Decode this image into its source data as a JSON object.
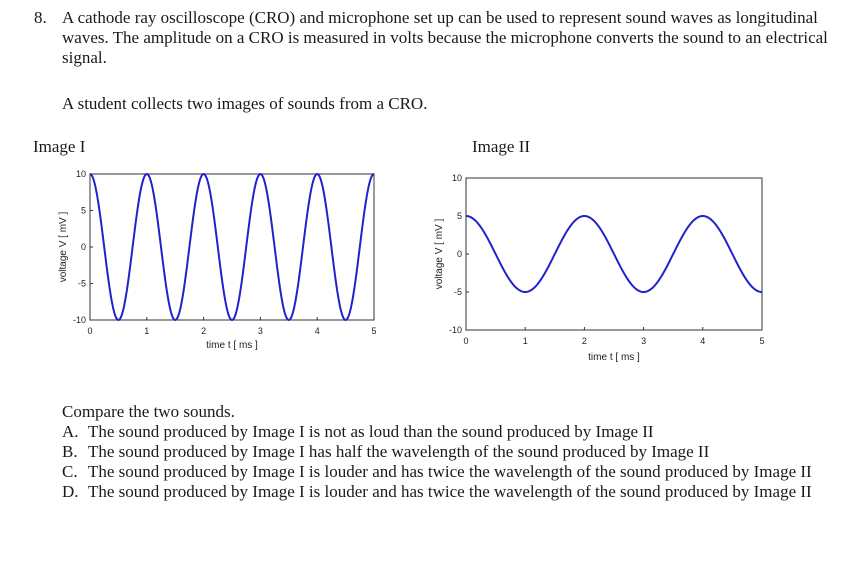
{
  "question": {
    "number": "8.",
    "text": "A cathode ray oscilloscope (CRO) and microphone set up can be used to represent sound waves as longitudinal waves. The amplitude on a CRO is measured in volts because the microphone converts the sound to an electrical signal.",
    "intro": "A student collects two images of sounds from a CRO."
  },
  "images": {
    "image1_label": "Image I",
    "image2_label": "Image II"
  },
  "chart_data": [
    {
      "type": "line",
      "title": "",
      "xlabel": "time  t  [ ms ]",
      "ylabel": "voltage  V  [ mV ]",
      "xlim": [
        0,
        5
      ],
      "ylim": [
        -10,
        10
      ],
      "xticks": [
        "0",
        "1",
        "2",
        "3",
        "4",
        "5"
      ],
      "yticks": [
        "10",
        "5",
        "0",
        "-5",
        "-10"
      ],
      "grid": false,
      "series": [
        {
          "amplitude": 10,
          "period_ms": 1,
          "phase": "starts at positive peak",
          "color": "#2222cc"
        }
      ]
    },
    {
      "type": "line",
      "title": "",
      "xlabel": "time  t  [ ms ]",
      "ylabel": "voltage  V  [ mV ]",
      "xlim": [
        0,
        5
      ],
      "ylim": [
        -10,
        10
      ],
      "xticks": [
        "0",
        "1",
        "2",
        "3",
        "4",
        "5"
      ],
      "yticks": [
        "10",
        "5",
        "0",
        "-5",
        "-10"
      ],
      "grid": false,
      "series": [
        {
          "amplitude": 5,
          "period_ms": 2,
          "phase": "starts at positive peak",
          "color": "#2222cc"
        }
      ]
    }
  ],
  "options": {
    "prompt": "Compare the two sounds.",
    "items": [
      {
        "letter": "A.",
        "text": "The sound produced by Image I is not as loud than the sound produced by Image II"
      },
      {
        "letter": "B.",
        "text": "The sound produced by Image I has half the wavelength of the sound produced by Image II"
      },
      {
        "letter": "C.",
        "text": "The sound produced by Image I is louder and has twice the wavelength of the sound produced by Image II"
      },
      {
        "letter": "D.",
        "text": "The sound produced by Image I is louder and has twice the wavelength of the sound produced by Image II"
      }
    ]
  }
}
